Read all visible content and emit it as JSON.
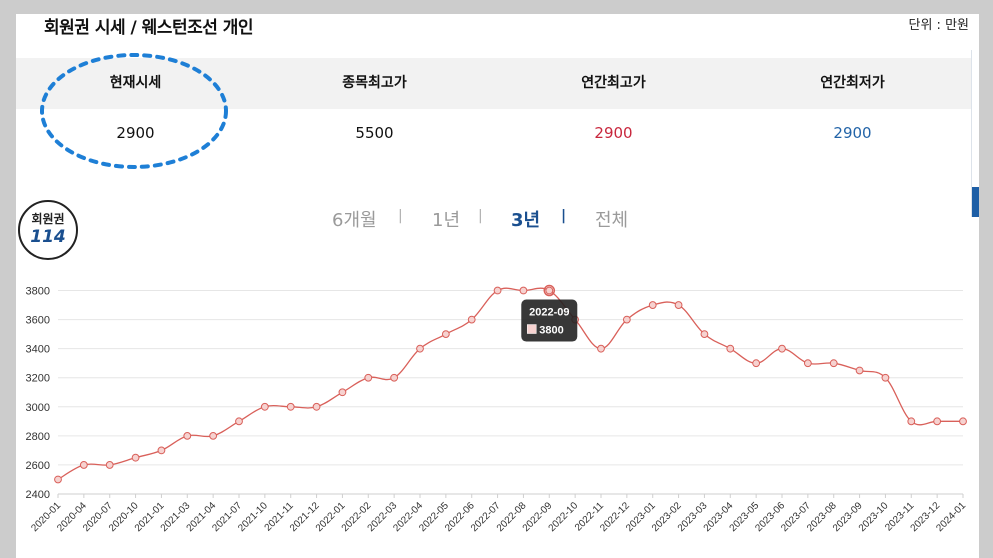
{
  "header": {
    "title": "회원권 시세 / 웨스턴조선 개인",
    "unit": "단위 : 만원"
  },
  "summary": [
    {
      "label": "현재시세",
      "value": "2900"
    },
    {
      "label": "종목최고가",
      "value": "5500"
    },
    {
      "label": "연간최고가",
      "value": "2900"
    },
    {
      "label": "연간최저가",
      "value": "2900"
    }
  ],
  "badge": {
    "top": "회원권",
    "number": "114"
  },
  "tabs": [
    {
      "label": "6개월"
    },
    {
      "label": "1년"
    },
    {
      "label": "3년",
      "active": true
    },
    {
      "label": "전체"
    }
  ],
  "colors": {
    "line": "#d9605a",
    "grid": "#e6e6e6",
    "highlight_circle": "#1e7fd6",
    "tooltip_bg": "#222222"
  },
  "tooltip": {
    "date": "2022-09",
    "value": "3800"
  },
  "chart_data": {
    "type": "line",
    "x": [
      "2020-01",
      "2020-04",
      "2020-07",
      "2020-10",
      "2021-01",
      "2021-03",
      "2021-04",
      "2021-07",
      "2021-10",
      "2021-11",
      "2021-12",
      "2022-01",
      "2022-02",
      "2022-03",
      "2022-04",
      "2022-05",
      "2022-06",
      "2022-07",
      "2022-08",
      "2022-09",
      "2022-10",
      "2022-11",
      "2022-12",
      "2023-01",
      "2023-02",
      "2023-03",
      "2023-04",
      "2023-05",
      "2023-06",
      "2023-07",
      "2023-08",
      "2023-09",
      "2023-10",
      "2023-11",
      "2023-12",
      "2024-01"
    ],
    "series": [
      {
        "values": [
          2500,
          2600,
          2600,
          2650,
          2700,
          2800,
          2800,
          2900,
          3000,
          3000,
          3000,
          3100,
          3200,
          3200,
          3400,
          3500,
          3600,
          3800,
          3800,
          3800,
          3600,
          3400,
          3600,
          3700,
          3700,
          3500,
          3400,
          3300,
          3400,
          3300,
          3300,
          3250,
          3200,
          2900,
          2900,
          2900
        ]
      }
    ],
    "y_ticks": [
      2400,
      2600,
      2800,
      3000,
      3200,
      3400,
      3600,
      3800
    ],
    "ylim": [
      2400,
      3900
    ],
    "grid": true,
    "legend": "none"
  }
}
